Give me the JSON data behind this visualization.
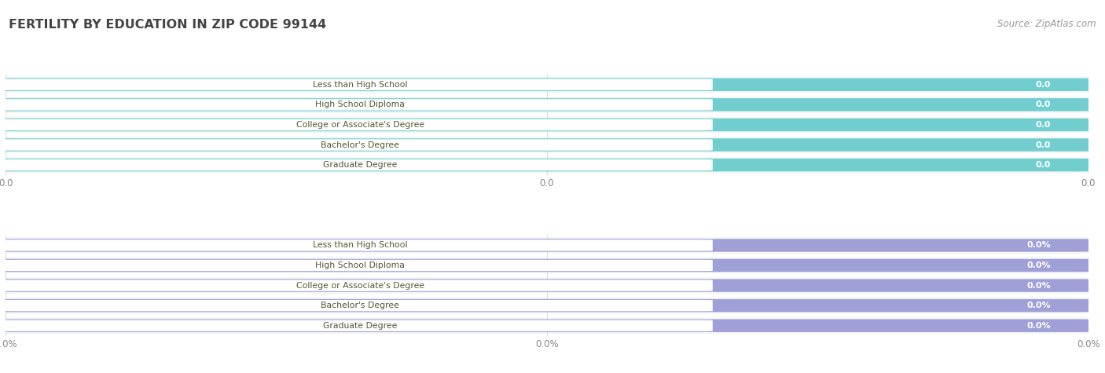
{
  "title": "FERTILITY BY EDUCATION IN ZIP CODE 99144",
  "source": "Source: ZipAtlas.com",
  "categories": [
    "Less than High School",
    "High School Diploma",
    "College or Associate's Degree",
    "Bachelor's Degree",
    "Graduate Degree"
  ],
  "group1_values": [
    0.0,
    0.0,
    0.0,
    0.0,
    0.0
  ],
  "group2_values": [
    0.0,
    0.0,
    0.0,
    0.0,
    0.0
  ],
  "group1_labels": [
    "0.0",
    "0.0",
    "0.0",
    "0.0",
    "0.0"
  ],
  "group2_labels": [
    "0.0%",
    "0.0%",
    "0.0%",
    "0.0%",
    "0.0%"
  ],
  "group1_bar_color": "#72cece",
  "group2_bar_color": "#a0a0d8",
  "white_pill_color": "#ffffff",
  "row_bg_color": "#f0f4f4",
  "background_color": "#ffffff",
  "grid_color": "#cccccc",
  "title_color": "#444444",
  "source_color": "#999999",
  "label_text_color": "#555533",
  "value_text_color": "#ffffff",
  "tick_color": "#888888"
}
